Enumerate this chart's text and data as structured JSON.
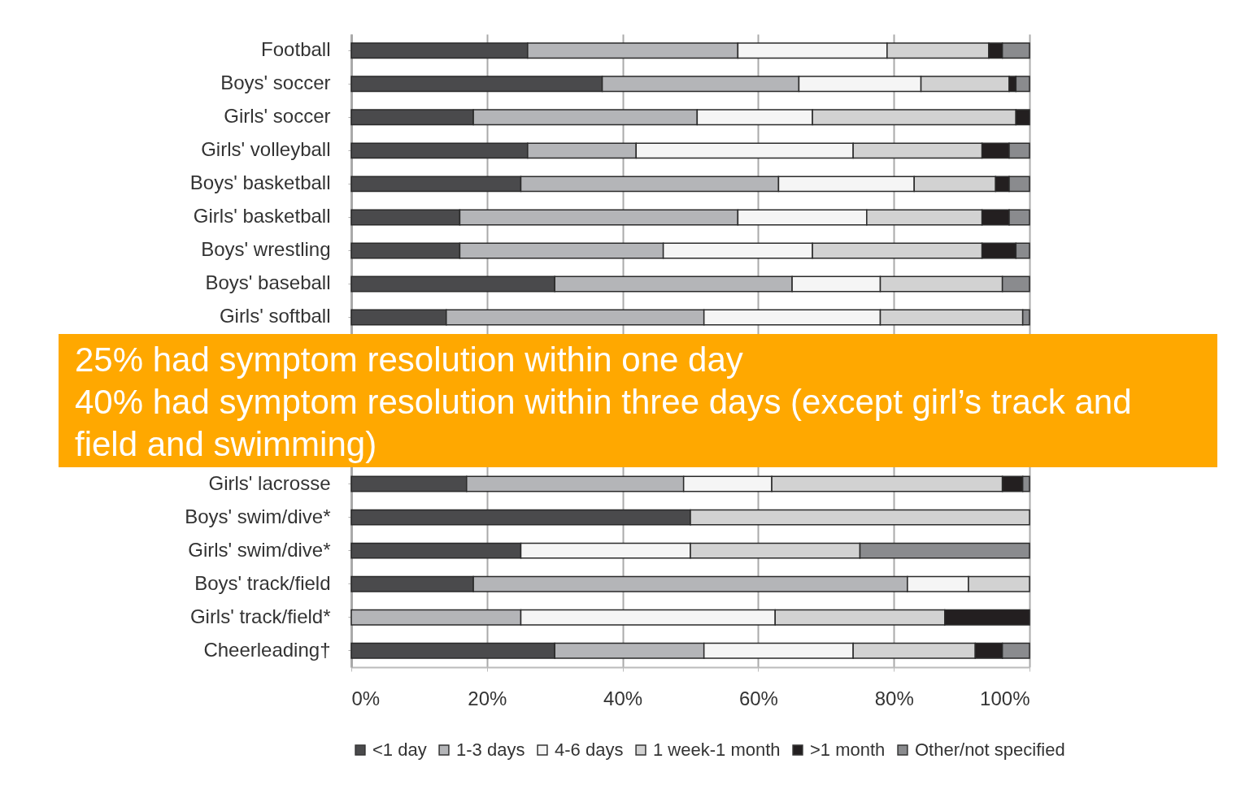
{
  "chart_data": {
    "type": "bar",
    "orientation": "horizontal",
    "stacked": true,
    "categories": [
      "Football",
      "Boys' soccer",
      "Girls' soccer",
      "Girls' volleyball",
      "Boys' basketball",
      "Girls' basketball",
      "Boys' wrestling",
      "Boys' baseball",
      "Girls' softball",
      null,
      null,
      null,
      null,
      "Girls' lacrosse",
      "Boys' swim/dive*",
      "Girls' swim/dive*",
      "Boys' track/field",
      "Girls' track/field*",
      "Cheerleading†"
    ],
    "series": [
      {
        "name": "<1 day",
        "color": "#4a4a4c",
        "values": [
          26,
          37,
          18,
          26,
          25,
          16,
          16,
          30,
          14,
          null,
          null,
          null,
          null,
          17,
          50,
          25,
          18,
          0,
          30
        ]
      },
      {
        "name": "1-3 days",
        "color": "#b4b5b8",
        "values": [
          31,
          29,
          33,
          16,
          38,
          41,
          30,
          35,
          38,
          null,
          null,
          null,
          null,
          32,
          0,
          0,
          64,
          25,
          22
        ]
      },
      {
        "name": "4-6 days",
        "color": "#f5f5f5",
        "values": [
          22,
          18,
          17,
          32,
          20,
          19,
          22,
          13,
          26,
          null,
          null,
          null,
          null,
          13,
          0,
          25,
          9,
          37.5,
          22
        ]
      },
      {
        "name": "1 week-1 month",
        "color": "#d2d2d2",
        "values": [
          15,
          13,
          30,
          19,
          12,
          17,
          25,
          18,
          21,
          null,
          null,
          null,
          null,
          34,
          50,
          25,
          9,
          25,
          18
        ]
      },
      {
        "name": ">1 month",
        "color": "#231f20",
        "values": [
          2,
          1,
          2,
          4,
          2,
          4,
          5,
          0,
          0,
          null,
          null,
          null,
          null,
          3,
          0,
          0,
          0,
          12.5,
          4
        ]
      },
      {
        "name": "Other/not specified",
        "color": "#8a8b8e",
        "values": [
          4,
          2,
          0,
          3,
          3,
          3,
          2,
          4,
          1,
          null,
          null,
          null,
          null,
          1,
          0,
          25,
          0,
          0,
          4
        ]
      }
    ],
    "xlim": [
      0,
      100
    ],
    "xticks": [
      {
        "value": 0,
        "label": "0%"
      },
      {
        "value": 20,
        "label": "20%"
      },
      {
        "value": 40,
        "label": "40%"
      },
      {
        "value": 60,
        "label": "60%"
      },
      {
        "value": 80,
        "label": "80%"
      },
      {
        "value": 100,
        "label": "100%"
      }
    ],
    "grid": "x",
    "legend": "bottom",
    "annotations": [
      "25% had symptom resolution within one day",
      "40% had symptom resolution within three days (except girl’s track and field and swimming)"
    ]
  }
}
